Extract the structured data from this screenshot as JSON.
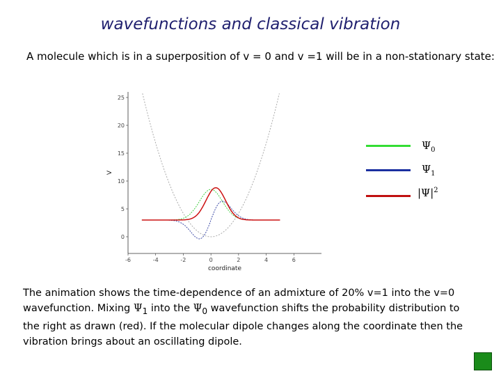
{
  "title": "wavefunctions and classical vibration",
  "subtitle": "A molecule which is in a superposition of v = 0 and v =1 will be in a non-stationary state:",
  "chart_data": {
    "type": "line",
    "xlabel": "coordinate",
    "ylabel": "V",
    "xlim": [
      -6,
      8
    ],
    "ylim": [
      -3,
      26
    ],
    "xticks": [
      -6,
      -4,
      -2,
      0,
      2,
      4,
      6
    ],
    "yticks": [
      0,
      5,
      10,
      15,
      20,
      25
    ],
    "tick_labels_x": [
      "-6",
      "-4",
      "-2",
      "0",
      "2",
      "4",
      "6"
    ],
    "tick_labels_y": [
      "0",
      "5",
      "10",
      "15",
      "20",
      "25"
    ],
    "potential": {
      "x0": 0,
      "k": 1.05,
      "color": "#aaaaaa"
    },
    "baseline": 3,
    "series": [
      {
        "name": "Ψ0",
        "color": "#33cc33",
        "center": 0,
        "amp": 5.5,
        "form": "gauss"
      },
      {
        "name": "Ψ1",
        "color": "#2b3a9e",
        "center": 0,
        "amp": 7.0,
        "form": "first"
      },
      {
        "name": "|Ψ|2",
        "color": "#cc1111",
        "center": 0.35,
        "amp": 5.8,
        "form": "mix"
      }
    ],
    "grid": false,
    "legend_position": "right"
  },
  "legend": {
    "psi0": {
      "symbol": "Ψ",
      "sub": "0",
      "color": "#33dd33"
    },
    "psi1": {
      "symbol": "Ψ",
      "sub": "1",
      "color": "#1a2fa0"
    },
    "prob": {
      "symbol": "|Ψ|",
      "sup": "2",
      "color": "#c01010"
    }
  },
  "body": {
    "p1": "The animation shows the time-dependence of an admixture of 20% v=1 into the v=0 wavefunction. Mixing ",
    "psi_a": "Ψ",
    "sub_a": "1",
    "p2": " into the ",
    "psi_b": "Ψ",
    "sub_b": "0",
    "p3": " wavefunction shifts the probability distribution to the right as drawn (red). If the molecular dipole changes along the coordinate then the vibration brings about an oscillating dipole."
  },
  "nav": {
    "next_color": "#1a8b1a"
  }
}
